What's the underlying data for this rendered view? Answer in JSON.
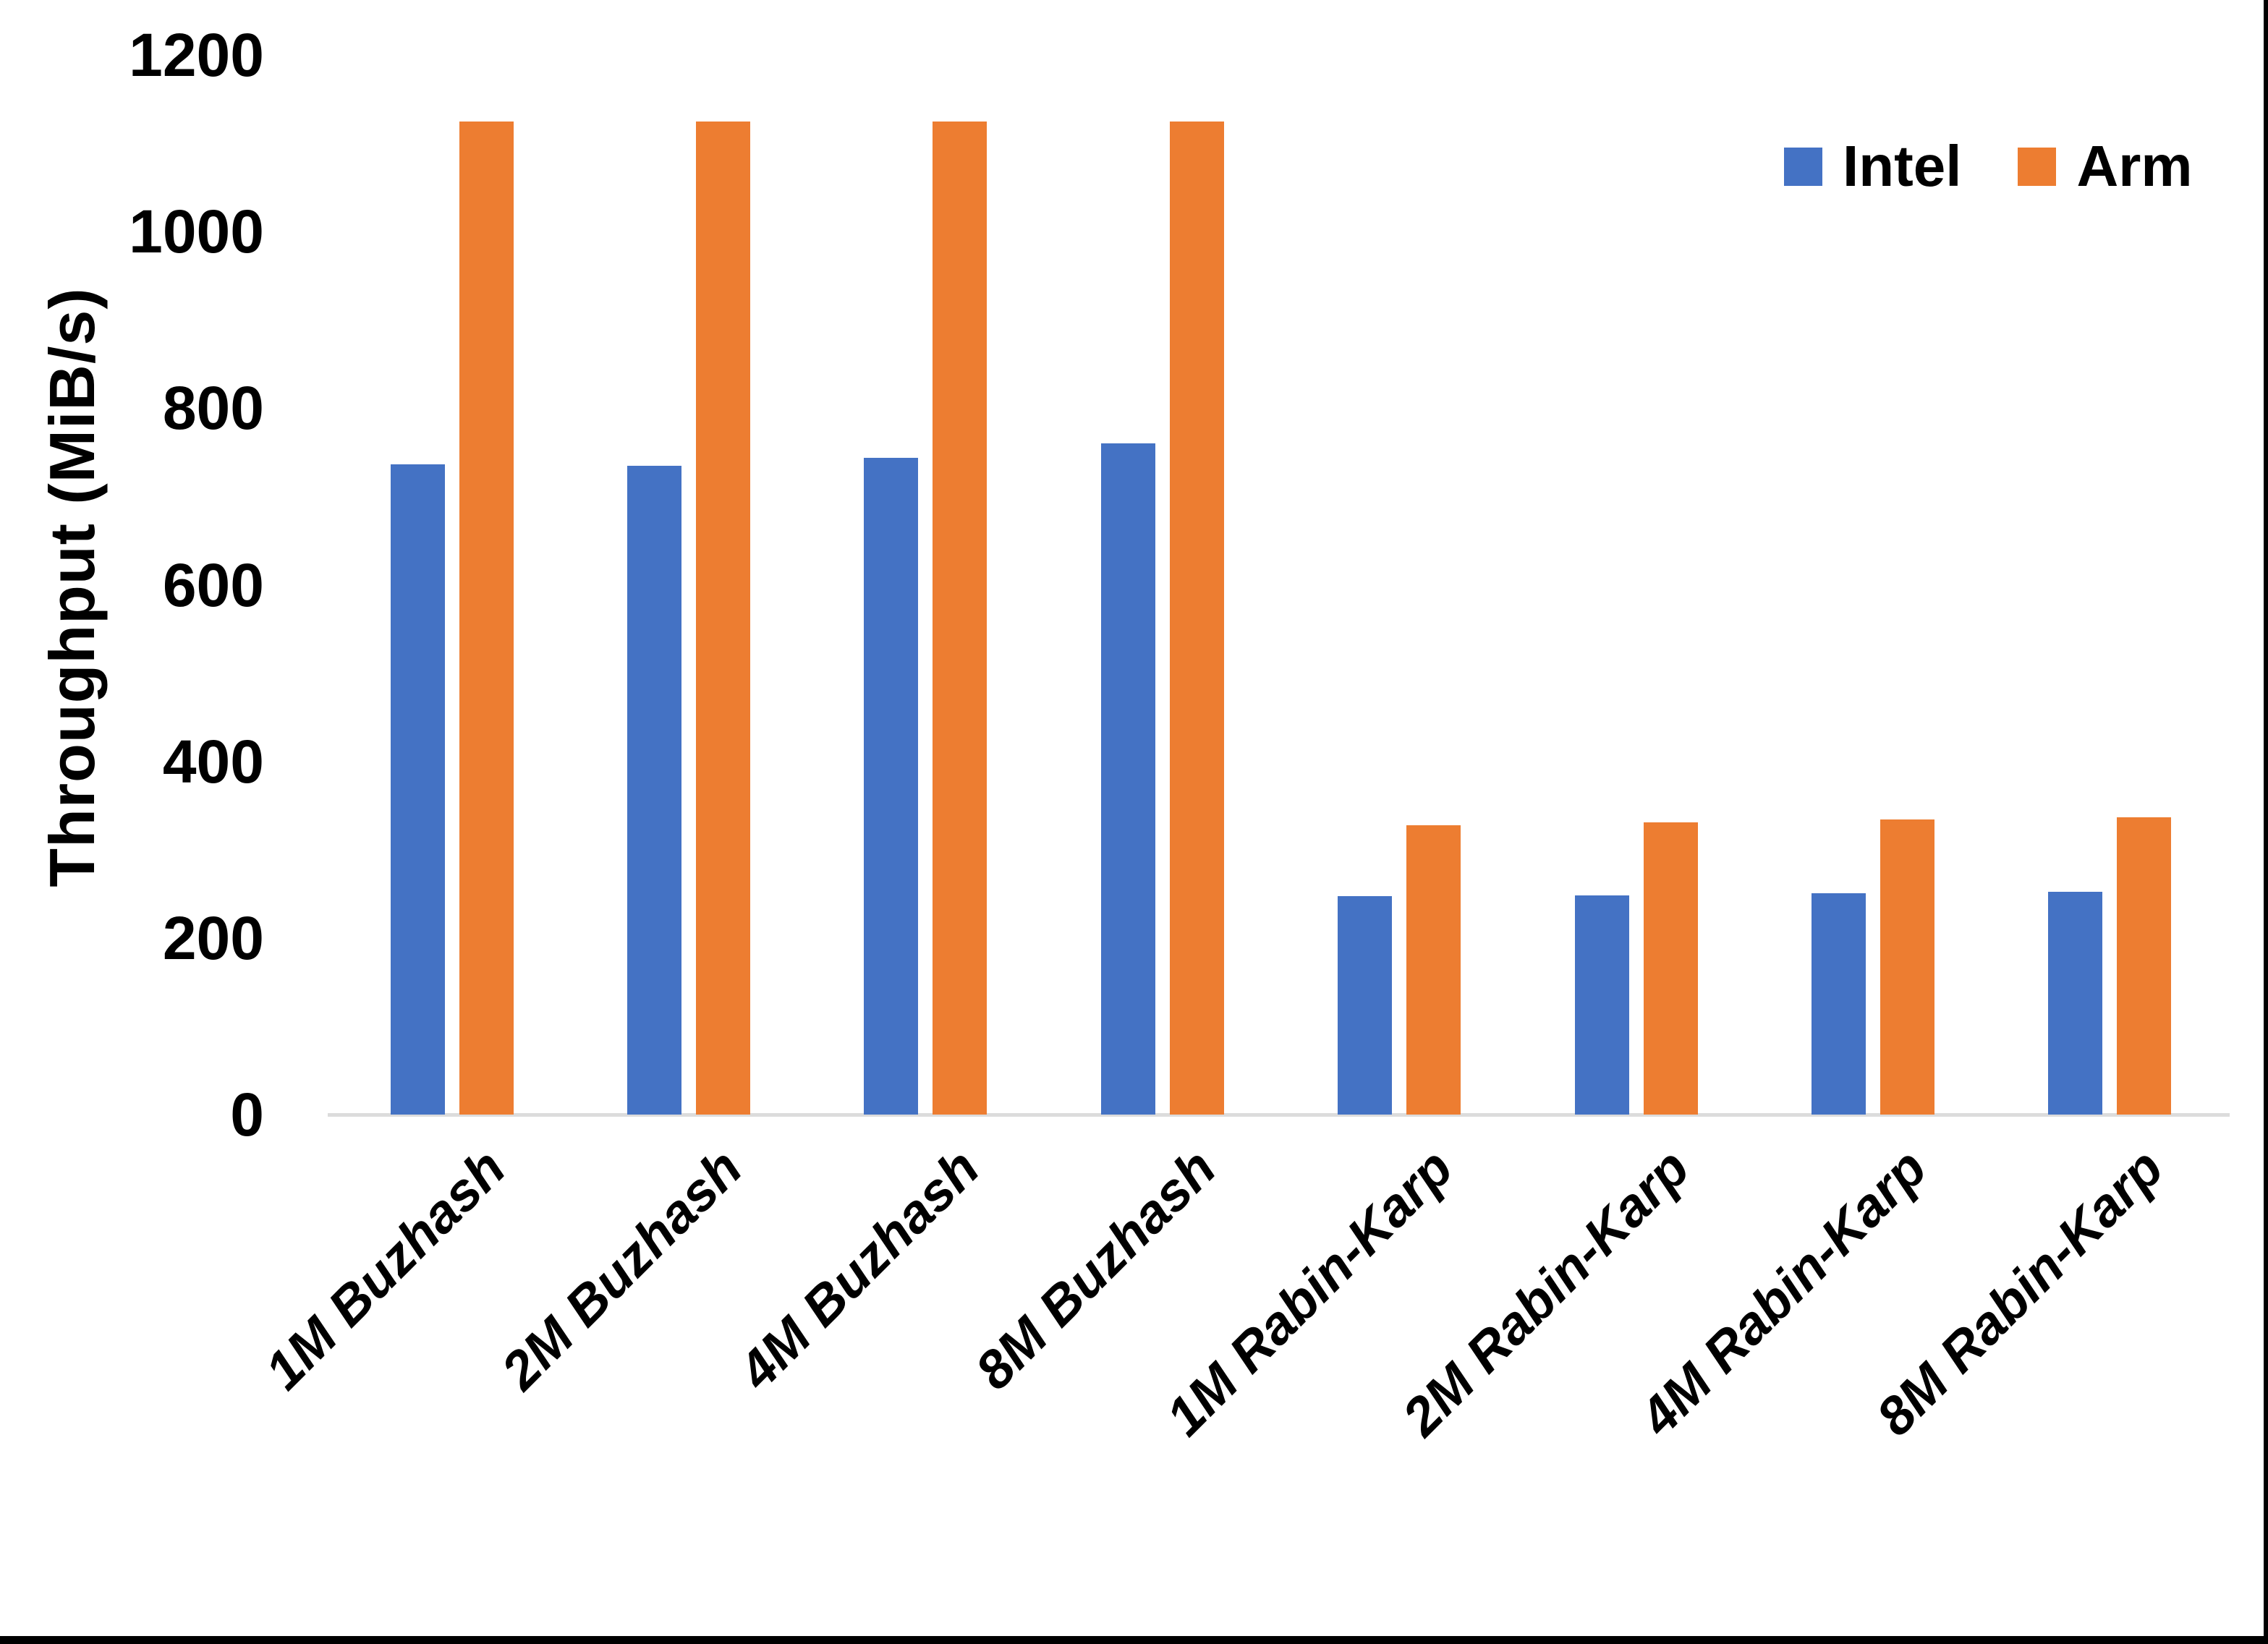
{
  "chart_data": {
    "type": "bar",
    "title": "",
    "xlabel": "",
    "ylabel": "Throughput (MiB/s)",
    "ylim": [
      0,
      1200
    ],
    "yticks": [
      0,
      200,
      400,
      600,
      800,
      1000,
      1200
    ],
    "grid": false,
    "legend_position": "top-right",
    "categories": [
      "1M Buzhash",
      "2M Buzhash",
      "4M Buzhash",
      "8M Buzhash",
      "1M Rabin-Karp",
      "2M Rabin-Karp",
      "4M Rabin-Karp",
      "8M Rabin-Karp"
    ],
    "series": [
      {
        "name": "Intel",
        "color": "#4472C4",
        "values": [
          736,
          735,
          744,
          760,
          247,
          248,
          251,
          252
        ]
      },
      {
        "name": "Arm",
        "color": "#ED7D31",
        "values": [
          1125,
          1125,
          1125,
          1125,
          328,
          331,
          334,
          337
        ]
      }
    ]
  },
  "colors": {
    "axis_line": "#dcdcdc",
    "text": "#000000",
    "background": "#ffffff",
    "border": "#000000"
  }
}
